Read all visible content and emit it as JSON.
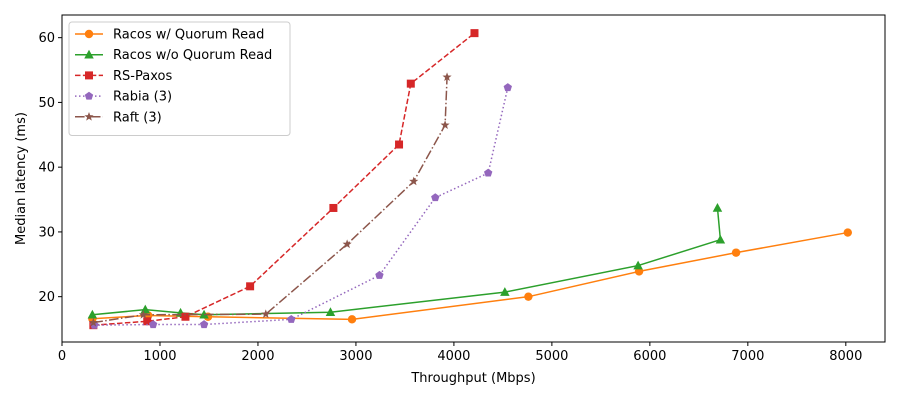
{
  "chart_data": {
    "type": "line",
    "title": "",
    "xlabel": "Throughput (Mbps)",
    "ylabel": "Median latency (ms)",
    "xlim": [
      0,
      8400
    ],
    "ylim": [
      13,
      63.5
    ],
    "xticks": [
      0,
      1000,
      2000,
      3000,
      4000,
      5000,
      6000,
      7000,
      8000
    ],
    "yticks": [
      20,
      30,
      40,
      50,
      60
    ],
    "grid": false,
    "legend_position": "upper-left",
    "series": [
      {
        "name": "Racos w/ Quorum Read",
        "color": "#ff7f0e",
        "marker": "circle",
        "line_style": "solid",
        "x": [
          310,
          880,
          1490,
          2960,
          4760,
          5890,
          6880,
          8020
        ],
        "y": [
          16.6,
          17.1,
          16.9,
          16.5,
          20.0,
          23.9,
          26.8,
          29.9
        ]
      },
      {
        "name": "Racos w/o Quorum Read",
        "color": "#2ca02c",
        "marker": "triangle",
        "line_style": "solid",
        "x": [
          310,
          850,
          1210,
          1450,
          2740,
          4520,
          5880,
          6720,
          6690
        ],
        "y": [
          17.2,
          18.0,
          17.5,
          17.2,
          17.6,
          20.7,
          24.8,
          28.8,
          33.7
        ]
      },
      {
        "name": "RS-Paxos",
        "color": "#d62728",
        "marker": "square",
        "line_style": "dashed",
        "x": [
          320,
          870,
          1260,
          1920,
          2770,
          3440,
          3560,
          4210
        ],
        "y": [
          15.6,
          16.2,
          16.9,
          21.6,
          33.7,
          43.5,
          52.9,
          60.7
        ]
      },
      {
        "name": "Rabia (3)",
        "color": "#9467bd",
        "marker": "pentagon",
        "line_style": "dotted",
        "x": [
          330,
          930,
          1450,
          2340,
          3240,
          3810,
          4350,
          4550
        ],
        "y": [
          15.6,
          15.7,
          15.7,
          16.5,
          23.3,
          35.3,
          39.1,
          52.3
        ]
      },
      {
        "name": "Raft (3)",
        "color": "#8c564b",
        "marker": "star",
        "line_style": "dashdot",
        "x": [
          320,
          830,
          2080,
          2910,
          3590,
          3910,
          3930
        ],
        "y": [
          16.0,
          17.2,
          17.3,
          28.1,
          37.8,
          46.5,
          53.9
        ]
      }
    ]
  }
}
